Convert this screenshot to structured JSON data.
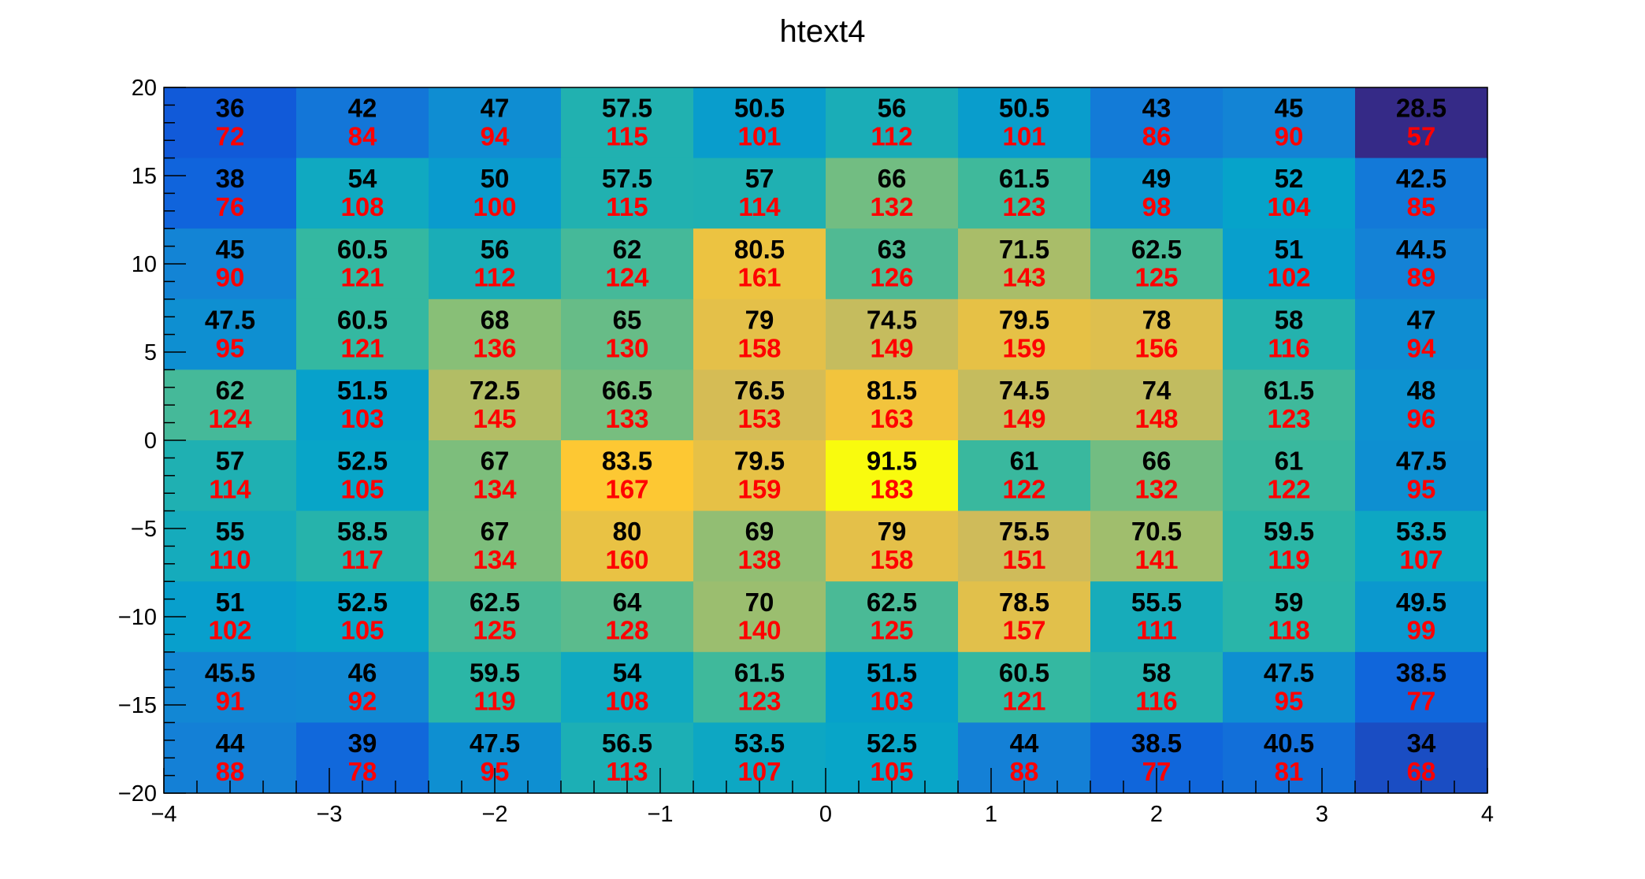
{
  "chart_data": {
    "type": "heatmap",
    "title": "htext4",
    "x_range": [
      -4,
      4
    ],
    "y_range": [
      -20,
      20
    ],
    "nx": 10,
    "ny": 10,
    "x_ticks": [
      {
        "value": -4,
        "label": "−4"
      },
      {
        "value": -3,
        "label": "−3"
      },
      {
        "value": -2,
        "label": "−2"
      },
      {
        "value": -1,
        "label": "−1"
      },
      {
        "value": 0,
        "label": "0"
      },
      {
        "value": 1,
        "label": "1"
      },
      {
        "value": 2,
        "label": "2"
      },
      {
        "value": 3,
        "label": "3"
      },
      {
        "value": 4,
        "label": "4"
      }
    ],
    "y_ticks": [
      {
        "value": 20,
        "label": "20"
      },
      {
        "value": 15,
        "label": "15"
      },
      {
        "value": 10,
        "label": "10"
      },
      {
        "value": 5,
        "label": "5"
      },
      {
        "value": 0,
        "label": "0"
      },
      {
        "value": -5,
        "label": "−5"
      },
      {
        "value": -10,
        "label": "−10"
      },
      {
        "value": -15,
        "label": "−15"
      },
      {
        "value": -20,
        "label": "−20"
      }
    ],
    "color_min": 57,
    "color_max": 183,
    "palette": [
      "#352a87",
      "#0f5cdd",
      "#1481d6",
      "#06a4ca",
      "#2eb7a4",
      "#87bf77",
      "#d1bb59",
      "#fec832",
      "#f9fb0e"
    ],
    "primary_values": [
      [
        "36",
        "42",
        "47",
        "57.5",
        "50.5",
        "56",
        "50.5",
        "43",
        "45",
        "28.5"
      ],
      [
        "38",
        "54",
        "50",
        "57.5",
        "57",
        "66",
        "61.5",
        "49",
        "52",
        "42.5"
      ],
      [
        "45",
        "60.5",
        "56",
        "62",
        "80.5",
        "63",
        "71.5",
        "62.5",
        "51",
        "44.5"
      ],
      [
        "47.5",
        "60.5",
        "68",
        "65",
        "79",
        "74.5",
        "79.5",
        "78",
        "58",
        "47"
      ],
      [
        "62",
        "51.5",
        "72.5",
        "66.5",
        "76.5",
        "81.5",
        "74.5",
        "74",
        "61.5",
        "48"
      ],
      [
        "57",
        "52.5",
        "67",
        "83.5",
        "79.5",
        "91.5",
        "61",
        "66",
        "61",
        "47.5"
      ],
      [
        "55",
        "58.5",
        "67",
        "80",
        "69",
        "79",
        "75.5",
        "70.5",
        "59.5",
        "53.5"
      ],
      [
        "51",
        "52.5",
        "62.5",
        "64",
        "70",
        "62.5",
        "78.5",
        "55.5",
        "59",
        "49.5"
      ],
      [
        "45.5",
        "46",
        "59.5",
        "54",
        "61.5",
        "51.5",
        "60.5",
        "58",
        "47.5",
        "38.5"
      ],
      [
        "44",
        "39",
        "47.5",
        "56.5",
        "53.5",
        "52.5",
        "44",
        "38.5",
        "40.5",
        "34"
      ]
    ],
    "secondary_values": [
      [
        "72",
        "84",
        "94",
        "115",
        "101",
        "112",
        "101",
        "86",
        "90",
        "57"
      ],
      [
        "76",
        "108",
        "100",
        "115",
        "114",
        "132",
        "123",
        "98",
        "104",
        "85"
      ],
      [
        "90",
        "121",
        "112",
        "124",
        "161",
        "126",
        "143",
        "125",
        "102",
        "89"
      ],
      [
        "95",
        "121",
        "136",
        "130",
        "158",
        "149",
        "159",
        "156",
        "116",
        "94"
      ],
      [
        "124",
        "103",
        "145",
        "133",
        "153",
        "163",
        "149",
        "148",
        "123",
        "96"
      ],
      [
        "114",
        "105",
        "134",
        "167",
        "159",
        "183",
        "122",
        "132",
        "122",
        "95"
      ],
      [
        "110",
        "117",
        "134",
        "160",
        "138",
        "158",
        "151",
        "141",
        "119",
        "107"
      ],
      [
        "102",
        "105",
        "125",
        "128",
        "140",
        "125",
        "157",
        "111",
        "118",
        "99"
      ],
      [
        "91",
        "92",
        "119",
        "108",
        "123",
        "103",
        "121",
        "116",
        "95",
        "77"
      ],
      [
        "88",
        "78",
        "95",
        "113",
        "107",
        "105",
        "88",
        "77",
        "81",
        "68"
      ]
    ]
  }
}
